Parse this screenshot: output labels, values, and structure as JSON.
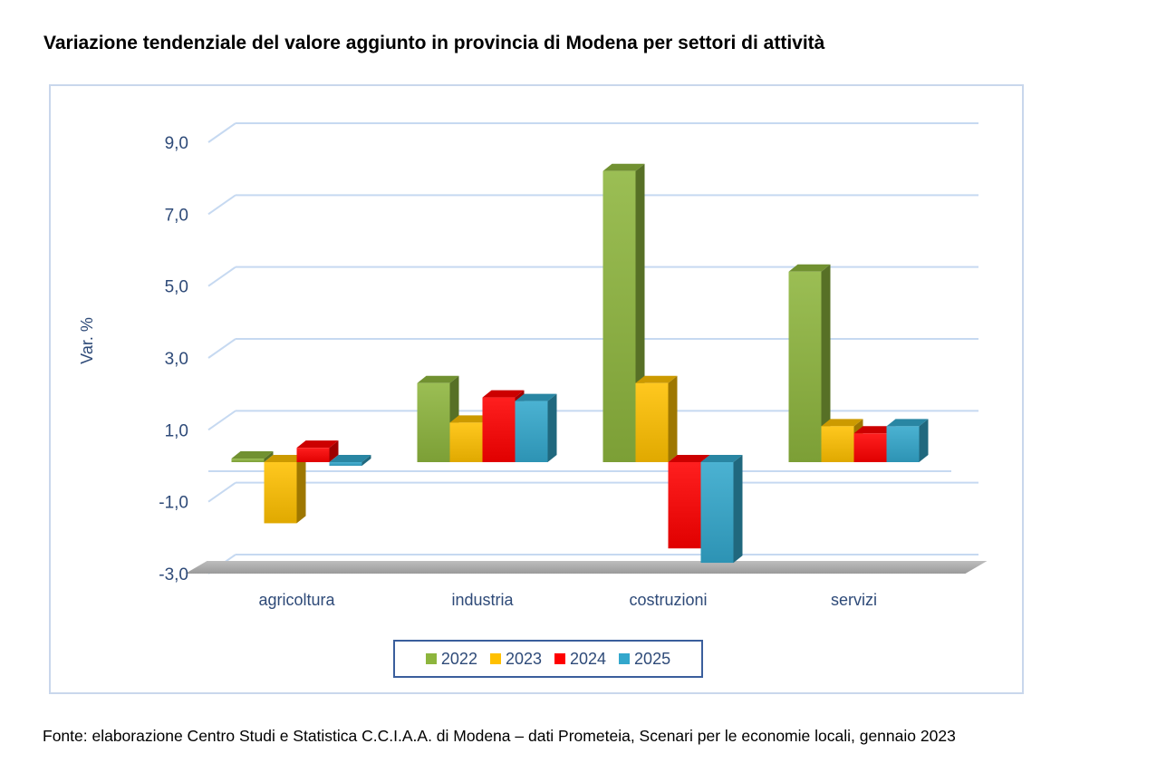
{
  "title": "Variazione tendenziale del valore aggiunto in provincia di Modena per settori di attività",
  "source": "Fonte: elaborazione Centro Studi e Statistica C.C.I.A.A. di Modena – dati Prometeia, Scenari per le economie locali, gennaio 2023",
  "chart_data": {
    "type": "bar",
    "ylabel": "Var. %",
    "xlabel": "",
    "ylim": [
      -3.0,
      9.0
    ],
    "yticks": [
      "9,0",
      "7,0",
      "5,0",
      "3,0",
      "1,0",
      "-1,0",
      "-3,0"
    ],
    "ytick_values": [
      9,
      7,
      5,
      3,
      1,
      -1,
      -3
    ],
    "grid": true,
    "legend_position": "bottom",
    "categories": [
      "agricoltura",
      "industria",
      "costruzioni",
      "servizi"
    ],
    "series": [
      {
        "name": "2022",
        "color": "#8db53d",
        "values": [
          0.1,
          2.2,
          8.1,
          5.3
        ]
      },
      {
        "name": "2023",
        "color": "#ffc000",
        "values": [
          -1.7,
          1.1,
          2.2,
          1.0
        ]
      },
      {
        "name": "2024",
        "color": "#ff0000",
        "values": [
          0.4,
          1.8,
          -2.4,
          0.8
        ]
      },
      {
        "name": "2025",
        "color": "#33a7cc",
        "values": [
          -0.1,
          1.7,
          -2.8,
          1.0
        ]
      }
    ]
  }
}
